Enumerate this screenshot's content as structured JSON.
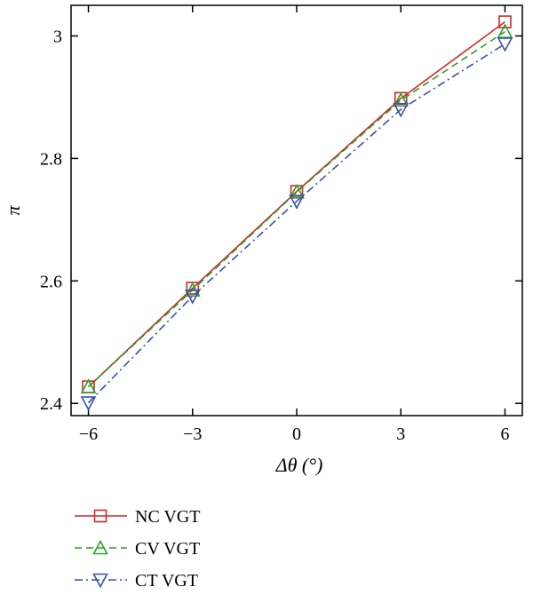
{
  "chart_data": {
    "type": "line",
    "title": "",
    "xlabel": "Δθ (°)",
    "ylabel": "π",
    "xlim": [
      -6.5,
      6.5
    ],
    "ylim": [
      2.38,
      3.05
    ],
    "x_ticks": [
      -6,
      -3,
      0,
      3,
      6
    ],
    "x_tick_labels": [
      "−6",
      "−3",
      "0",
      "3",
      "6"
    ],
    "y_ticks": [
      2.4,
      2.6,
      2.8,
      3.0
    ],
    "y_tick_labels": [
      "2.4",
      "2.6",
      "2.8",
      "3"
    ],
    "grid": false,
    "legend_position": "bottom-left",
    "x": [
      -6,
      -3,
      0,
      3,
      6
    ],
    "series": [
      {
        "name": "NC VGT",
        "values": [
          2.427,
          2.588,
          2.746,
          2.898,
          3.023
        ],
        "color": "#d62728",
        "dash": "solid",
        "marker": "square"
      },
      {
        "name": "CV VGT",
        "values": [
          2.427,
          2.585,
          2.745,
          2.895,
          3.007
        ],
        "color": "#2ca02c",
        "dash": "dashed",
        "marker": "triangle-up"
      },
      {
        "name": "CT VGT",
        "values": [
          2.401,
          2.575,
          2.73,
          2.88,
          2.987
        ],
        "color": "#3a50b0",
        "dash": "dashdot",
        "marker": "triangle-down"
      }
    ]
  }
}
